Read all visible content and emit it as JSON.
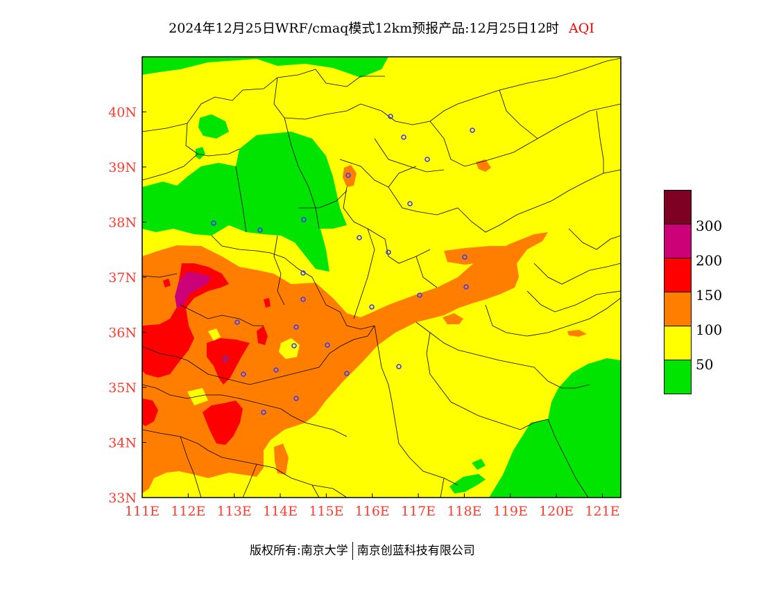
{
  "title": {
    "main": "2024年12月25日WRF/cmaq模式12km预报产品:12月25日12时",
    "tag": "AQI"
  },
  "map": {
    "lon_range": [
      111,
      121.4
    ],
    "lat_range": [
      33,
      41
    ],
    "x_ticks": [
      "111E",
      "112E",
      "113E",
      "114E",
      "115E",
      "116E",
      "117E",
      "118E",
      "119E",
      "120E",
      "121E"
    ],
    "y_ticks": [
      "33N",
      "34N",
      "35N",
      "36N",
      "37N",
      "38N",
      "39N",
      "40N"
    ],
    "colors": {
      "good": "#00e400",
      "moderate": "#ffff00",
      "usg": "#ff7e00",
      "unhealthy": "#ff0000",
      "very_unhealthy": "#cc0077",
      "hazardous": "#7e0023",
      "axis_label": "#ff3b30",
      "city_marker": "#3a3aff"
    },
    "city_marker_count": 30
  },
  "legend": {
    "levels": [
      "300",
      "200",
      "150",
      "100",
      "50"
    ],
    "colors": [
      "#7e0023",
      "#cc0077",
      "#ff0000",
      "#ff7e00",
      "#ffff00",
      "#00e400"
    ]
  },
  "footer": {
    "left": "版权所有:南京大学",
    "right": "南京创蓝科技有限公司"
  }
}
